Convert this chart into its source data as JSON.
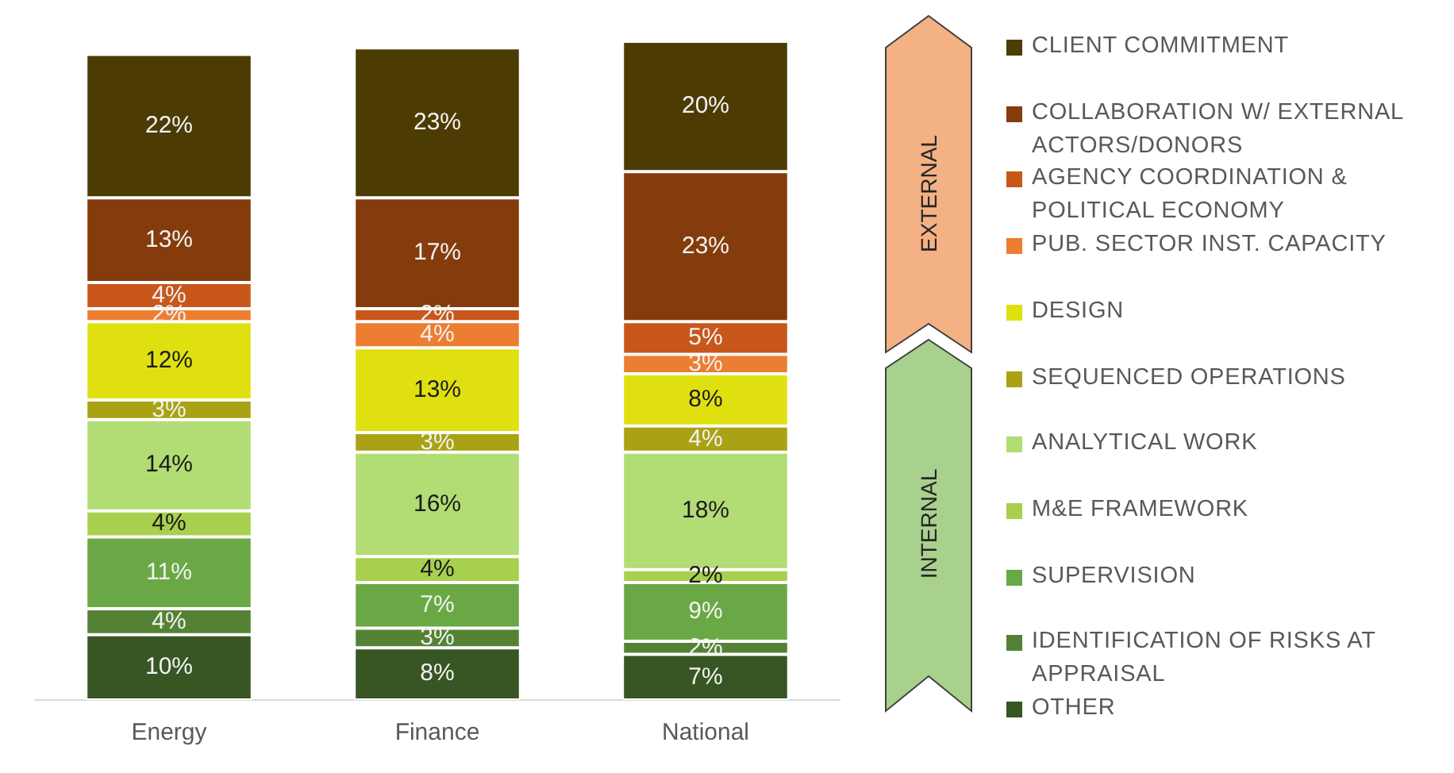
{
  "chart_data": {
    "type": "bar",
    "stacked": true,
    "categories": [
      "Energy",
      "Finance",
      "National"
    ],
    "ylim": [
      0,
      101
    ],
    "tick_labels": "x",
    "grid": false,
    "legend": "right",
    "annotations": [
      "EXTERNAL",
      "INTERNAL"
    ],
    "series": [
      {
        "name": "OTHER",
        "color": "#375623",
        "values": [
          10,
          8,
          7
        ],
        "value_labels": [
          "10%",
          "8%",
          "7%"
        ]
      },
      {
        "name": "IDENTIFICATION OF RISKS AT APPRAISAL",
        "color": "#548235",
        "values": [
          4,
          3,
          2
        ],
        "value_labels": [
          "4%",
          "3%",
          "2%"
        ]
      },
      {
        "name": "SUPERVISION",
        "color": "#6aa845",
        "values": [
          11,
          7,
          9
        ],
        "value_labels": [
          "11%",
          "7%",
          "9%"
        ]
      },
      {
        "name": "M&E FRAMEWORK",
        "color": "#a9cf4f",
        "values": [
          4,
          4,
          2
        ],
        "value_labels": [
          "4%",
          "4%",
          "2%"
        ]
      },
      {
        "name": "ANALYTICAL WORK",
        "color": "#b2dc74",
        "values": [
          14,
          16,
          18
        ],
        "value_labels": [
          "14%",
          "16%",
          "18%"
        ]
      },
      {
        "name": "SEQUENCED OPERATIONS",
        "color": "#a9a214",
        "values": [
          3,
          3,
          4
        ],
        "value_labels": [
          "3%",
          "3%",
          "4%"
        ]
      },
      {
        "name": "DESIGN",
        "color": "#e0e010",
        "values": [
          12,
          13,
          8
        ],
        "value_labels": [
          "12%",
          "13%",
          "8%"
        ]
      },
      {
        "name": "PUB. SECTOR INST. CAPACITY",
        "color": "#ed7d31",
        "values": [
          2,
          4,
          3
        ],
        "value_labels": [
          "2%",
          "4%",
          "3%"
        ]
      },
      {
        "name": "AGENCY COORDINATION & POLITICAL ECONOMY",
        "color": "#c9561a",
        "values": [
          4,
          2,
          5
        ],
        "value_labels": [
          "4%",
          "2%",
          "5%"
        ]
      },
      {
        "name": "COLLABORATION W/ EXTERNAL ACTORS/DONORS",
        "color": "#843c0c",
        "values": [
          13,
          17,
          23
        ],
        "value_labels": [
          "13%",
          "17%",
          "23%"
        ]
      },
      {
        "name": "CLIENT COMMITMENT",
        "color": "#4d3b04",
        "values": [
          22,
          23,
          20
        ],
        "value_labels": [
          "22%",
          "23%",
          "20%"
        ]
      }
    ]
  }
}
